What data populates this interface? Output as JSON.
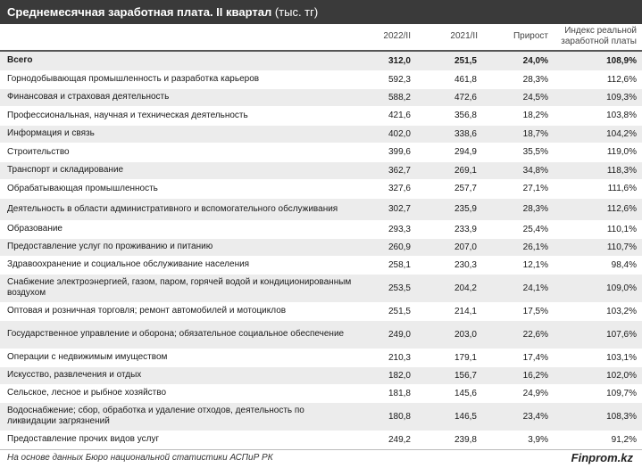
{
  "title": {
    "main": "Среднемесячная заработная плата. II квартал",
    "unit": " (тыс. тг)"
  },
  "header": {
    "col1": "2022/II",
    "col2": "2021/II",
    "col3": "Прирост",
    "col4": "Индекс реальной заработной платы"
  },
  "rows": [
    {
      "name": "Всего",
      "v2022": "312,0",
      "v2021": "251,5",
      "growth": "24,0%",
      "index": "108,9%"
    },
    {
      "name": "Горнодобывающая промышленность и разработка карьеров",
      "v2022": "592,3",
      "v2021": "461,8",
      "growth": "28,3%",
      "index": "112,6%"
    },
    {
      "name": "Финансовая и страховая деятельность",
      "v2022": "588,2",
      "v2021": "472,6",
      "growth": "24,5%",
      "index": "109,3%"
    },
    {
      "name": "Профессиональная, научная и техническая деятельность",
      "v2022": "421,6",
      "v2021": "356,8",
      "growth": "18,2%",
      "index": "103,8%"
    },
    {
      "name": "Информация и связь",
      "v2022": "402,0",
      "v2021": "338,6",
      "growth": "18,7%",
      "index": "104,2%"
    },
    {
      "name": "Строительство",
      "v2022": "399,6",
      "v2021": "294,9",
      "growth": "35,5%",
      "index": "119,0%"
    },
    {
      "name": "Транспорт и складирование",
      "v2022": "362,7",
      "v2021": "269,1",
      "growth": "34,8%",
      "index": "118,3%"
    },
    {
      "name": "Обрабатывающая промышленность",
      "v2022": "327,6",
      "v2021": "257,7",
      "growth": "27,1%",
      "index": "111,6%"
    },
    {
      "name": "Деятельность в области административного и вспомогательного обслуживания",
      "v2022": "302,7",
      "v2021": "235,9",
      "growth": "28,3%",
      "index": "112,6%"
    },
    {
      "name": "Образование",
      "v2022": "293,3",
      "v2021": "233,9",
      "growth": "25,4%",
      "index": "110,1%"
    },
    {
      "name": "Предоставление услуг по проживанию и питанию",
      "v2022": "260,9",
      "v2021": "207,0",
      "growth": "26,1%",
      "index": "110,7%"
    },
    {
      "name": "Здравоохранение и социальное обслуживание населения",
      "v2022": "258,1",
      "v2021": "230,3",
      "growth": "12,1%",
      "index": "98,4%"
    },
    {
      "name": "Снабжение электроэнергией, газом, паром, горячей водой и кондиционированным воздухом",
      "v2022": "253,5",
      "v2021": "204,2",
      "growth": "24,1%",
      "index": "109,0%"
    },
    {
      "name": "Оптовая и розничная торговля; ремонт автомобилей и мотоциклов",
      "v2022": "251,5",
      "v2021": "214,1",
      "growth": "17,5%",
      "index": "103,2%"
    },
    {
      "name": "Государственное управление и оборона; обязательное социальное обеспечение",
      "v2022": "249,0",
      "v2021": "203,0",
      "growth": "22,6%",
      "index": "107,6%"
    },
    {
      "name": "Операции с недвижимым имуществом",
      "v2022": "210,3",
      "v2021": "179,1",
      "growth": "17,4%",
      "index": "103,1%"
    },
    {
      "name": "Искусство, развлечения и отдых",
      "v2022": "182,0",
      "v2021": "156,7",
      "growth": "16,2%",
      "index": "102,0%"
    },
    {
      "name": "Сельское, лесное и рыбное хозяйство",
      "v2022": "181,8",
      "v2021": "145,6",
      "growth": "24,9%",
      "index": "109,7%"
    },
    {
      "name": "Водоснабжение; сбор, обработка и удаление отходов, деятельность по ликвидации загрязнений",
      "v2022": "180,8",
      "v2021": "146,5",
      "growth": "23,4%",
      "index": "108,3%"
    },
    {
      "name": "Предоставление прочих видов услуг",
      "v2022": "249,2",
      "v2021": "239,8",
      "growth": "3,9%",
      "index": "91,2%"
    }
  ],
  "footer": {
    "source": "На основе данных Бюро национальной статистики АСПиР РК",
    "brand": "Finprom.kz"
  }
}
